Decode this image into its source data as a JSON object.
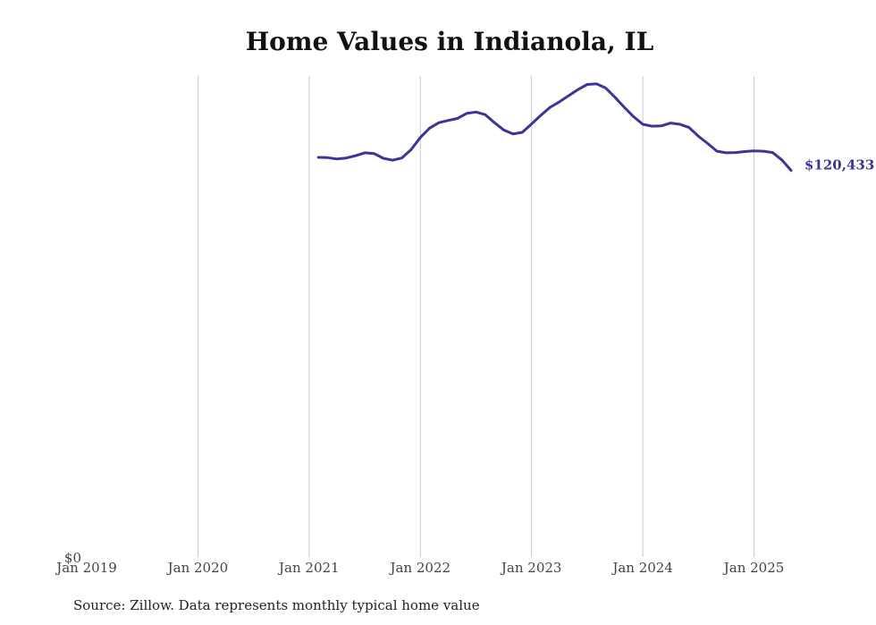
{
  "title": "Home Values in Indianola, IL",
  "source": "Source: Zillow. Data represents monthly typical home value",
  "colors": {
    "line": "#3a3597",
    "grid": "#c8c8c8",
    "text": "#444444"
  },
  "chart_data": {
    "type": "line",
    "title": "Home Values in Indianola, IL",
    "xlabel": "",
    "ylabel": "",
    "grid": "vertical",
    "x_ticks": [
      "Jan 2019",
      "Jan 2020",
      "Jan 2021",
      "Jan 2022",
      "Jan 2023",
      "Jan 2024",
      "Jan 2025"
    ],
    "y_ticks": [
      "$0"
    ],
    "xlim": [
      "2019-01",
      "2025-05"
    ],
    "ylim": [
      0,
      149000
    ],
    "end_label": "$120,433",
    "series": [
      {
        "x": [
          "2021-02",
          "2021-03",
          "2021-04",
          "2021-05",
          "2021-06",
          "2021-07",
          "2021-08",
          "2021-09",
          "2021-10",
          "2021-11",
          "2021-12",
          "2022-01",
          "2022-02",
          "2022-03",
          "2022-04",
          "2022-05",
          "2022-06",
          "2022-07",
          "2022-08",
          "2022-09",
          "2022-10",
          "2022-11",
          "2022-12",
          "2023-01",
          "2023-02",
          "2023-03",
          "2023-04",
          "2023-05",
          "2023-06",
          "2023-07",
          "2023-08",
          "2023-09",
          "2023-10",
          "2023-11",
          "2023-12",
          "2024-01",
          "2024-02",
          "2024-03",
          "2024-04",
          "2024-05",
          "2024-06",
          "2024-07",
          "2024-08",
          "2024-09",
          "2024-10",
          "2024-11",
          "2024-12",
          "2025-01",
          "2025-02",
          "2025-03",
          "2025-04",
          "2025-05"
        ],
        "y": [
          124500,
          124400,
          124000,
          124300,
          125000,
          125900,
          125700,
          124200,
          123600,
          124300,
          126900,
          130700,
          133600,
          135300,
          136000,
          136600,
          138200,
          138600,
          137800,
          135300,
          133000,
          131800,
          132300,
          134900,
          137600,
          140100,
          141800,
          143700,
          145600,
          147200,
          147400,
          146100,
          143200,
          140100,
          137200,
          134800,
          134200,
          134300,
          135200,
          134800,
          133800,
          131100,
          128800,
          126400,
          125900,
          126000,
          126300,
          126500,
          126400,
          126000,
          123700,
          120433
        ]
      }
    ]
  }
}
